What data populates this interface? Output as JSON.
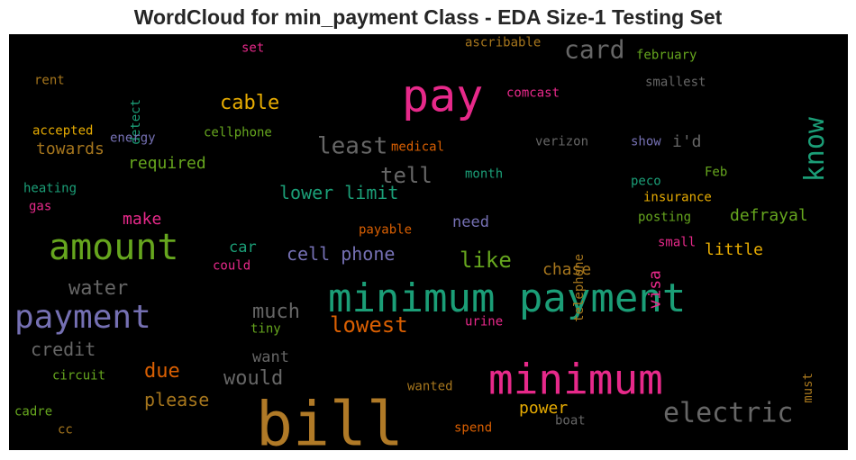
{
  "chart_data": {
    "type": "wordcloud",
    "title": "WordCloud for min_payment Class - EDA Size-1 Testing Set",
    "background": "#000000",
    "words": [
      {
        "text": "bill",
        "color": "#b07a27",
        "vertical": false
      },
      {
        "text": "minimum payment",
        "color": "#1b9e77",
        "vertical": false
      },
      {
        "text": "minimum",
        "color": "#e7298a",
        "vertical": false
      },
      {
        "text": "pay",
        "color": "#e7298a",
        "vertical": false
      },
      {
        "text": "amount",
        "color": "#66a61e",
        "vertical": false
      },
      {
        "text": "payment",
        "color": "#7570b3",
        "vertical": false
      },
      {
        "text": "electric",
        "color": "#666666",
        "vertical": false
      },
      {
        "text": "know",
        "color": "#1b9e77",
        "vertical": true
      },
      {
        "text": "card",
        "color": "#666666",
        "vertical": false
      },
      {
        "text": "least",
        "color": "#666666",
        "vertical": false
      },
      {
        "text": "lowest",
        "color": "#d95f02",
        "vertical": false
      },
      {
        "text": "cable",
        "color": "#e6ab02",
        "vertical": false
      },
      {
        "text": "tell",
        "color": "#666666",
        "vertical": false
      },
      {
        "text": "like",
        "color": "#66a61e",
        "vertical": false
      },
      {
        "text": "much",
        "color": "#666666",
        "vertical": false
      },
      {
        "text": "would",
        "color": "#666666",
        "vertical": false
      },
      {
        "text": "due",
        "color": "#d95f02",
        "vertical": false
      },
      {
        "text": "water",
        "color": "#666666",
        "vertical": false
      },
      {
        "text": "lower limit",
        "color": "#1b9e77",
        "vertical": false
      },
      {
        "text": "cell phone",
        "color": "#7570b3",
        "vertical": false
      },
      {
        "text": "credit",
        "color": "#666666",
        "vertical": false
      },
      {
        "text": "please",
        "color": "#a6761d",
        "vertical": false
      },
      {
        "text": "power",
        "color": "#e6ab02",
        "vertical": false
      },
      {
        "text": "defrayal",
        "color": "#66a61e",
        "vertical": false
      },
      {
        "text": "chase",
        "color": "#a6761d",
        "vertical": false
      },
      {
        "text": "i'd",
        "color": "#666666",
        "vertical": false
      },
      {
        "text": "towards",
        "color": "#a6761d",
        "vertical": false
      },
      {
        "text": "required",
        "color": "#66a61e",
        "vertical": false
      },
      {
        "text": "make",
        "color": "#e7298a",
        "vertical": false
      },
      {
        "text": "little",
        "color": "#e6ab02",
        "vertical": false
      },
      {
        "text": "need",
        "color": "#7570b3",
        "vertical": false
      },
      {
        "text": "want",
        "color": "#666666",
        "vertical": false
      },
      {
        "text": "car",
        "color": "#1b9e77",
        "vertical": false
      },
      {
        "text": "visa",
        "color": "#e7298a",
        "vertical": true
      },
      {
        "text": "ascribable",
        "color": "#a6761d",
        "vertical": false
      },
      {
        "text": "february",
        "color": "#66a61e",
        "vertical": false
      },
      {
        "text": "smallest",
        "color": "#666666",
        "vertical": false
      },
      {
        "text": "comcast",
        "color": "#e7298a",
        "vertical": false
      },
      {
        "text": "verizon",
        "color": "#666666",
        "vertical": false
      },
      {
        "text": "show",
        "color": "#7570b3",
        "vertical": false
      },
      {
        "text": "medical",
        "color": "#d95f02",
        "vertical": false
      },
      {
        "text": "month",
        "color": "#1b9e77",
        "vertical": false
      },
      {
        "text": "peco",
        "color": "#1b9e77",
        "vertical": false
      },
      {
        "text": "Feb",
        "color": "#66a61e",
        "vertical": false
      },
      {
        "text": "insurance",
        "color": "#e6ab02",
        "vertical": false
      },
      {
        "text": "posting",
        "color": "#66a61e",
        "vertical": false
      },
      {
        "text": "small",
        "color": "#e7298a",
        "vertical": false
      },
      {
        "text": "payable",
        "color": "#d95f02",
        "vertical": false
      },
      {
        "text": "telephone",
        "color": "#a6761d",
        "vertical": true
      },
      {
        "text": "set",
        "color": "#e7298a",
        "vertical": false
      },
      {
        "text": "rent",
        "color": "#a6761d",
        "vertical": false
      },
      {
        "text": "detect",
        "color": "#1b9e77",
        "vertical": true
      },
      {
        "text": "accepted",
        "color": "#e6ab02",
        "vertical": false
      },
      {
        "text": "energy",
        "color": "#7570b3",
        "vertical": false
      },
      {
        "text": "cellphone",
        "color": "#66a61e",
        "vertical": false
      },
      {
        "text": "heating",
        "color": "#1b9e77",
        "vertical": false
      },
      {
        "text": "gas",
        "color": "#e7298a",
        "vertical": false
      },
      {
        "text": "could",
        "color": "#e7298a",
        "vertical": false
      },
      {
        "text": "tiny",
        "color": "#66a61e",
        "vertical": false
      },
      {
        "text": "urine",
        "color": "#e7298a",
        "vertical": false
      },
      {
        "text": "circuit",
        "color": "#66a61e",
        "vertical": false
      },
      {
        "text": "cadre",
        "color": "#66a61e",
        "vertical": false
      },
      {
        "text": "cc",
        "color": "#a6761d",
        "vertical": false
      },
      {
        "text": "wanted",
        "color": "#a6761d",
        "vertical": false
      },
      {
        "text": "spend",
        "color": "#d95f02",
        "vertical": false
      },
      {
        "text": "boat",
        "color": "#666666",
        "vertical": false
      },
      {
        "text": "must",
        "color": "#a6761d",
        "vertical": true
      }
    ]
  }
}
